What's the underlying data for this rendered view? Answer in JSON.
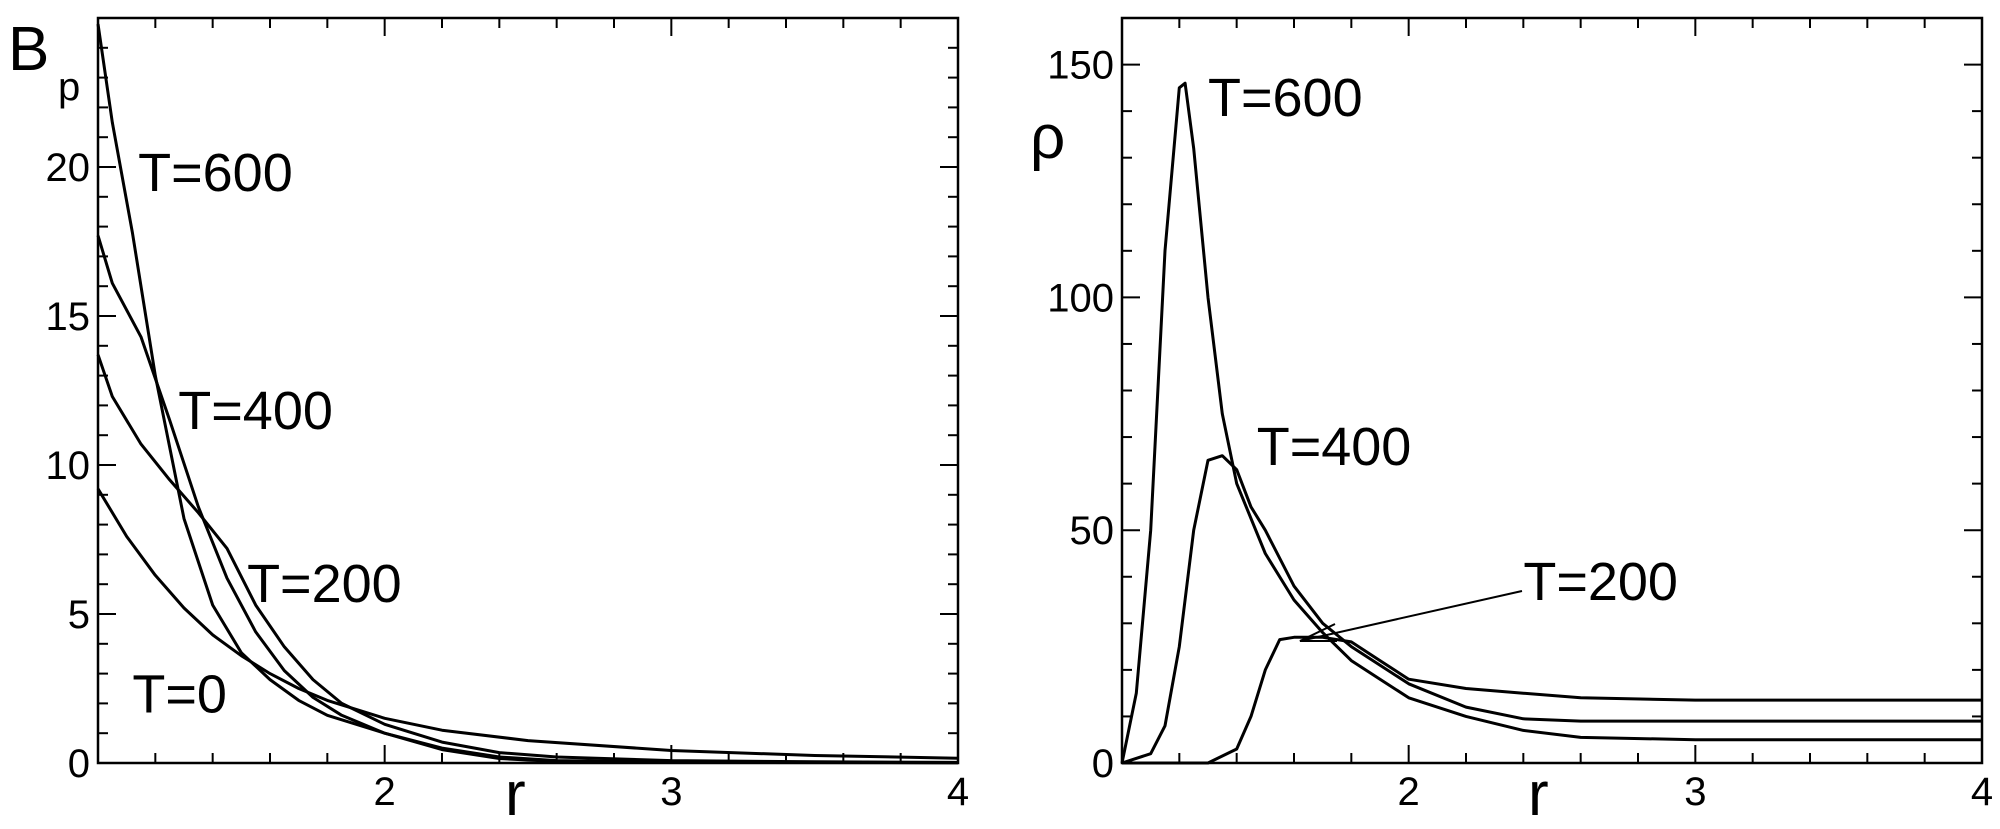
{
  "chart_data": [
    {
      "type": "line",
      "title": "",
      "xlabel": "r",
      "ylabel": "B",
      "ylabel_sub": "p",
      "xlim": [
        1,
        4
      ],
      "ylim": [
        0,
        25
      ],
      "xticks": [
        2,
        3,
        4
      ],
      "yticks": [
        0,
        5,
        10,
        15,
        20
      ],
      "grid": false,
      "legend": "none",
      "series": [
        {
          "name": "T=0",
          "x": [
            1.0,
            1.1,
            1.2,
            1.3,
            1.4,
            1.5,
            1.6,
            1.7,
            1.8,
            2.0,
            2.2,
            2.5,
            3.0,
            3.5,
            4.0
          ],
          "y": [
            9.2,
            7.6,
            6.3,
            5.2,
            4.3,
            3.6,
            3.0,
            2.5,
            2.1,
            1.5,
            1.1,
            0.75,
            0.42,
            0.25,
            0.16
          ]
        },
        {
          "name": "T=200",
          "x": [
            1.0,
            1.05,
            1.15,
            1.25,
            1.35,
            1.45,
            1.55,
            1.65,
            1.75,
            1.85,
            2.0,
            2.2,
            2.4,
            2.6,
            3.0,
            3.5,
            4.0
          ],
          "y": [
            13.7,
            12.3,
            10.7,
            9.5,
            8.4,
            7.2,
            5.3,
            3.9,
            2.8,
            2.0,
            1.3,
            0.7,
            0.35,
            0.2,
            0.08,
            0.04,
            0.02
          ]
        },
        {
          "name": "T=400",
          "x": [
            1.0,
            1.05,
            1.15,
            1.25,
            1.35,
            1.45,
            1.55,
            1.65,
            1.75,
            1.85,
            2.0,
            2.2,
            2.4,
            2.6,
            3.0,
            4.0
          ],
          "y": [
            17.7,
            16.1,
            14.3,
            11.5,
            8.6,
            6.2,
            4.4,
            3.1,
            2.2,
            1.6,
            1.0,
            0.5,
            0.2,
            0.08,
            0.03,
            0.01
          ]
        },
        {
          "name": "T=600",
          "x": [
            1.0,
            1.05,
            1.12,
            1.2,
            1.3,
            1.4,
            1.5,
            1.6,
            1.7,
            1.8,
            2.0,
            2.2,
            2.4,
            2.6,
            3.0,
            4.0
          ],
          "y": [
            24.8,
            21.5,
            17.8,
            13.0,
            8.2,
            5.3,
            3.7,
            2.8,
            2.1,
            1.6,
            1.0,
            0.45,
            0.15,
            0.05,
            0.02,
            0.01
          ]
        }
      ],
      "annotations": [
        {
          "text": "T=600",
          "x": 1.14,
          "y": 19.2
        },
        {
          "text": "T=400",
          "x": 1.28,
          "y": 11.2
        },
        {
          "text": "T=200",
          "x": 1.52,
          "y": 5.4
        },
        {
          "text": "T=0",
          "x": 1.12,
          "y": 1.7
        }
      ]
    },
    {
      "type": "line",
      "title": "",
      "xlabel": "r",
      "ylabel": "ρ",
      "xlim": [
        1,
        4
      ],
      "ylim": [
        0,
        160
      ],
      "xticks": [
        2,
        3,
        4
      ],
      "yticks": [
        0,
        50,
        100,
        150
      ],
      "grid": false,
      "legend": "none",
      "series": [
        {
          "name": "T=600",
          "x": [
            1.0,
            1.05,
            1.1,
            1.15,
            1.2,
            1.22,
            1.25,
            1.3,
            1.35,
            1.4,
            1.5,
            1.6,
            1.7,
            1.8,
            1.9,
            2.0,
            2.2,
            2.4,
            2.6,
            3.0,
            3.5,
            4.0
          ],
          "y": [
            0,
            15,
            50,
            110,
            145,
            146,
            132,
            100,
            75,
            60,
            45,
            35,
            28,
            22,
            18,
            14,
            10,
            7,
            5.5,
            5,
            5,
            5
          ]
        },
        {
          "name": "T=400",
          "x": [
            1.0,
            1.1,
            1.15,
            1.2,
            1.25,
            1.3,
            1.35,
            1.4,
            1.45,
            1.5,
            1.6,
            1.7,
            1.8,
            2.0,
            2.2,
            2.4,
            2.6,
            3.0,
            3.5,
            4.0
          ],
          "y": [
            0,
            2,
            8,
            25,
            50,
            65,
            66,
            63,
            55,
            50,
            38,
            30,
            25,
            17,
            12,
            9.5,
            9,
            9,
            9,
            9
          ]
        },
        {
          "name": "T=200",
          "x": [
            1.0,
            1.3,
            1.4,
            1.45,
            1.5,
            1.55,
            1.6,
            1.7,
            1.8,
            1.9,
            2.0,
            2.2,
            2.4,
            2.6,
            3.0,
            3.5,
            4.0
          ],
          "y": [
            0,
            0,
            3,
            10,
            20,
            26.5,
            27,
            27,
            26,
            22,
            18,
            16,
            15,
            14,
            13.5,
            13.5,
            13.5
          ]
        }
      ],
      "annotations": [
        {
          "text": "T=600",
          "x": 1.3,
          "y": 139
        },
        {
          "text": "T=400",
          "x": 1.47,
          "y": 64
        },
        {
          "text": "T=200",
          "x": 2.4,
          "y": 35
        }
      ]
    }
  ]
}
